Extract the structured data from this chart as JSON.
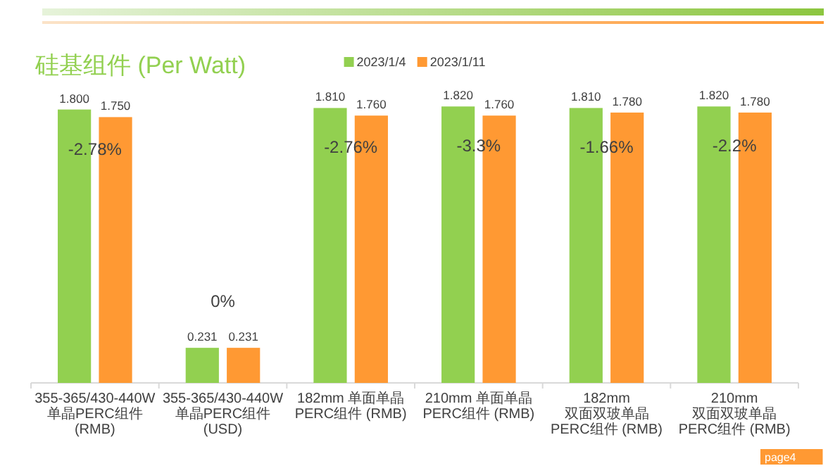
{
  "chart_data": {
    "type": "bar",
    "title": "硅基组件 (Per Watt)",
    "categories": [
      "355-365/430-440W\n单晶PERC组件 (RMB)",
      "355-365/430-440W\n单晶PERC组件 (USD)",
      "182mm 单面单晶\nPERC组件 (RMB)",
      "210mm 单面单晶\nPERC组件 (RMB)",
      "182mm 双面双玻单晶\nPERC组件 (RMB)",
      "210mm 双面双玻单晶\nPERC组件 (RMB)"
    ],
    "series": [
      {
        "name": "2023/1/4",
        "color": "#92d050",
        "values": [
          1.8,
          0.231,
          1.81,
          1.82,
          1.81,
          1.82
        ],
        "value_labels": [
          "1.800",
          "0.231",
          "1.810",
          "1.820",
          "1.810",
          "1.820"
        ]
      },
      {
        "name": "2023/1/11",
        "color": "#ff9933",
        "values": [
          1.75,
          0.231,
          1.76,
          1.76,
          1.78,
          1.78
        ],
        "value_labels": [
          "1.750",
          "0.231",
          "1.760",
          "1.760",
          "1.780",
          "1.780"
        ]
      }
    ],
    "annotations": [
      "-2.78%",
      "0%",
      "-2.76%",
      "-3.3%",
      "-1.66%",
      "-2.2%",
      "page4"
    ],
    "legend": "top"
  }
}
